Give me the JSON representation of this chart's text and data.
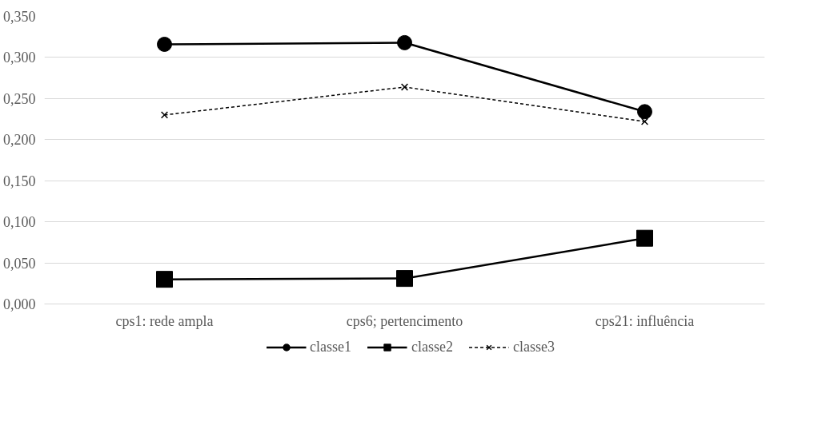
{
  "chart_data": {
    "type": "line",
    "categories": [
      "cps1: rede ampla",
      "cps6; pertencimento",
      "cps21: influência"
    ],
    "series": [
      {
        "name": "classe1",
        "color": "#000000",
        "values": [
          0.316,
          0.318,
          0.234
        ],
        "marker": "circle",
        "line_style": "solid"
      },
      {
        "name": "classe2",
        "color": "#000000",
        "values": [
          0.03,
          0.031,
          0.08
        ],
        "marker": "square",
        "line_style": "solid"
      },
      {
        "name": "classe3",
        "color": "#000000",
        "values": [
          0.23,
          0.264,
          0.222
        ],
        "marker": "cross",
        "line_style": "dashed"
      }
    ],
    "ylim": [
      0,
      0.35
    ],
    "yticks": [
      {
        "value": 0,
        "label": "0,000"
      },
      {
        "value": 0.05,
        "label": "0,050"
      },
      {
        "value": 0.1,
        "label": "0,100"
      },
      {
        "value": 0.15,
        "label": "0,150"
      },
      {
        "value": 0.2,
        "label": "0,200"
      },
      {
        "value": 0.25,
        "label": "0,250"
      },
      {
        "value": 0.3,
        "label": "0,300"
      },
      {
        "value": 0.35,
        "label": "0,350"
      }
    ],
    "grid": "y",
    "legend": "bottom"
  }
}
